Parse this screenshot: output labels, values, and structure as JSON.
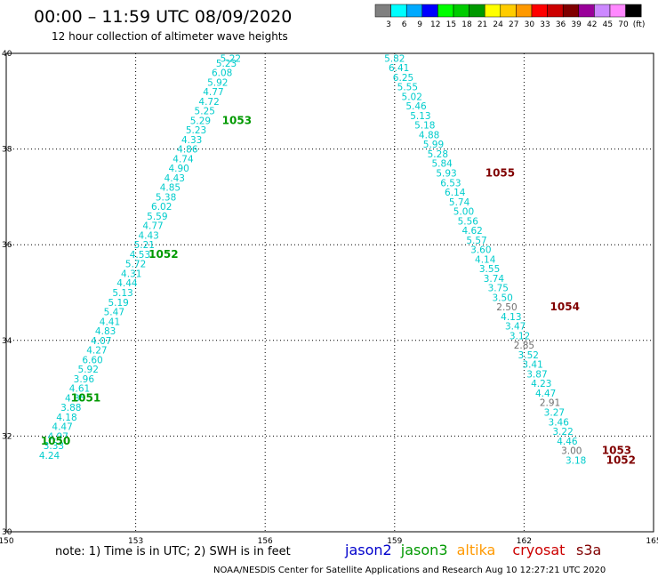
{
  "title": "00:00 – 11:59 UTC 08/09/2020",
  "subtitle": "12 hour collection of altimeter wave heights",
  "note": "note:  1) Time is in UTC;  2) SWH is in feet",
  "credit": "NOAA/NESDIS Center for Satellite Applications and Research      Aug 10 12:27:21 UTC 2020",
  "colorbar": {
    "colors": [
      "#808080",
      "#00ffff",
      "#00aaff",
      "#0000ff",
      "#00ff00",
      "#00cc00",
      "#009900",
      "#ffff00",
      "#ffcc00",
      "#ff9900",
      "#ff0000",
      "#cc0000",
      "#800000",
      "#990099",
      "#cc88ff",
      "#ff88ff",
      "#000000"
    ],
    "labels": [
      "3",
      "6",
      "9",
      "12",
      "15",
      "18",
      "21",
      "24",
      "27",
      "30",
      "33",
      "36",
      "39",
      "42",
      "45",
      "70",
      "(ft)"
    ]
  },
  "satellites": [
    {
      "name": "jason2",
      "color": "#0000cc"
    },
    {
      "name": "jason3",
      "color": "#009900"
    },
    {
      "name": "altika",
      "color": "#ff9900"
    },
    {
      "name": "cryosat",
      "color": "#cc0000"
    },
    {
      "name": "s3a",
      "color": "#800000"
    }
  ],
  "chart_data": {
    "type": "scatter",
    "xlim": [
      150,
      165
    ],
    "ylim": [
      30,
      40
    ],
    "x_ticks": [
      "150",
      "153",
      "156",
      "159",
      "162",
      "165"
    ],
    "y_ticks": [
      "30",
      "32",
      "34",
      "36",
      "38",
      "40"
    ],
    "grid": true,
    "series": [
      {
        "name": "jason3",
        "track_color": "#009900",
        "labels_color": "#00cccc",
        "points": [
          {
            "x": 155.2,
            "y": 39.9,
            "v": "5.22"
          },
          {
            "x": 155.1,
            "y": 39.8,
            "v": "5.23"
          },
          {
            "x": 155.0,
            "y": 39.6,
            "v": "6.08"
          },
          {
            "x": 154.9,
            "y": 39.4,
            "v": "5.92"
          },
          {
            "x": 154.8,
            "y": 39.2,
            "v": "4.77"
          },
          {
            "x": 154.7,
            "y": 39.0,
            "v": "4.72"
          },
          {
            "x": 154.6,
            "y": 38.8,
            "v": "5.25"
          },
          {
            "x": 154.5,
            "y": 38.6,
            "v": "5.29"
          },
          {
            "x": 154.4,
            "y": 38.4,
            "v": "5.23"
          },
          {
            "x": 154.3,
            "y": 38.2,
            "v": "4.33"
          },
          {
            "x": 154.2,
            "y": 38.0,
            "v": "4.86"
          },
          {
            "x": 154.1,
            "y": 37.8,
            "v": "4.74"
          },
          {
            "x": 154.0,
            "y": 37.6,
            "v": "4.90"
          },
          {
            "x": 153.9,
            "y": 37.4,
            "v": "4.43"
          },
          {
            "x": 153.8,
            "y": 37.2,
            "v": "4.85"
          },
          {
            "x": 153.7,
            "y": 37.0,
            "v": "5.38"
          },
          {
            "x": 153.6,
            "y": 36.8,
            "v": "6.02"
          },
          {
            "x": 153.5,
            "y": 36.6,
            "v": "5.59"
          },
          {
            "x": 153.4,
            "y": 36.4,
            "v": "4.77"
          },
          {
            "x": 153.3,
            "y": 36.2,
            "v": "4.43"
          },
          {
            "x": 153.2,
            "y": 36.0,
            "v": "5.21"
          },
          {
            "x": 153.1,
            "y": 35.8,
            "v": "4.53"
          },
          {
            "x": 153.0,
            "y": 35.6,
            "v": "5.72"
          },
          {
            "x": 152.9,
            "y": 35.4,
            "v": "4.31"
          },
          {
            "x": 152.8,
            "y": 35.2,
            "v": "4.44"
          },
          {
            "x": 152.7,
            "y": 35.0,
            "v": "5.13"
          },
          {
            "x": 152.6,
            "y": 34.8,
            "v": "5.19"
          },
          {
            "x": 152.5,
            "y": 34.6,
            "v": "5.47"
          },
          {
            "x": 152.4,
            "y": 34.4,
            "v": "4.41"
          },
          {
            "x": 152.3,
            "y": 34.2,
            "v": "4.83"
          },
          {
            "x": 152.2,
            "y": 34.0,
            "v": "4.07"
          },
          {
            "x": 152.1,
            "y": 33.8,
            "v": "4.27"
          },
          {
            "x": 152.0,
            "y": 33.6,
            "v": "6.60"
          },
          {
            "x": 151.9,
            "y": 33.4,
            "v": "5.92"
          },
          {
            "x": 151.8,
            "y": 33.2,
            "v": "3.96"
          },
          {
            "x": 151.7,
            "y": 33.0,
            "v": "4.61"
          },
          {
            "x": 151.6,
            "y": 32.8,
            "v": "4.35"
          },
          {
            "x": 151.5,
            "y": 32.6,
            "v": "3.88"
          },
          {
            "x": 151.4,
            "y": 32.4,
            "v": "4.18"
          },
          {
            "x": 151.3,
            "y": 32.2,
            "v": "4.47"
          },
          {
            "x": 151.2,
            "y": 32.0,
            "v": "4.97"
          },
          {
            "x": 151.1,
            "y": 31.8,
            "v": "3.33"
          },
          {
            "x": 151.0,
            "y": 31.6,
            "v": "4.24"
          }
        ],
        "tracks": [
          {
            "label": "1053",
            "x": 155.0,
            "y": 38.6
          },
          {
            "label": "1052",
            "x": 153.3,
            "y": 35.8
          },
          {
            "label": "1051",
            "x": 151.5,
            "y": 32.8
          },
          {
            "label": "1050",
            "x": 150.8,
            "y": 31.9
          }
        ]
      },
      {
        "name": "s3a",
        "track_color": "#800000",
        "labels_color": "#00cccc",
        "points": [
          {
            "x": 159.0,
            "y": 39.9,
            "v": "5.82"
          },
          {
            "x": 159.1,
            "y": 39.7,
            "v": "6.41"
          },
          {
            "x": 159.2,
            "y": 39.5,
            "v": "6.25"
          },
          {
            "x": 159.3,
            "y": 39.3,
            "v": "5.55"
          },
          {
            "x": 159.4,
            "y": 39.1,
            "v": "5.02"
          },
          {
            "x": 159.5,
            "y": 38.9,
            "v": "5.46"
          },
          {
            "x": 159.6,
            "y": 38.7,
            "v": "5.13"
          },
          {
            "x": 159.7,
            "y": 38.5,
            "v": "5.18"
          },
          {
            "x": 159.8,
            "y": 38.3,
            "v": "4.88"
          },
          {
            "x": 159.9,
            "y": 38.1,
            "v": "5.99"
          },
          {
            "x": 160.0,
            "y": 37.9,
            "v": "5.28"
          },
          {
            "x": 160.1,
            "y": 37.7,
            "v": "5.84"
          },
          {
            "x": 160.2,
            "y": 37.5,
            "v": "5.93"
          },
          {
            "x": 160.3,
            "y": 37.3,
            "v": "6.53"
          },
          {
            "x": 160.4,
            "y": 37.1,
            "v": "6.14"
          },
          {
            "x": 160.5,
            "y": 36.9,
            "v": "5.74"
          },
          {
            "x": 160.6,
            "y": 36.7,
            "v": "5.00"
          },
          {
            "x": 160.7,
            "y": 36.5,
            "v": "5.56"
          },
          {
            "x": 160.8,
            "y": 36.3,
            "v": "4.62"
          },
          {
            "x": 160.9,
            "y": 36.1,
            "v": "5.57"
          },
          {
            "x": 161.0,
            "y": 35.9,
            "v": "3.60"
          },
          {
            "x": 161.1,
            "y": 35.7,
            "v": "4.14"
          },
          {
            "x": 161.2,
            "y": 35.5,
            "v": "3.55"
          },
          {
            "x": 161.3,
            "y": 35.3,
            "v": "3.74"
          },
          {
            "x": 161.4,
            "y": 35.1,
            "v": "3.75"
          },
          {
            "x": 161.5,
            "y": 34.9,
            "v": "3.50"
          },
          {
            "x": 161.6,
            "y": 34.7,
            "v": "2.50",
            "gray": true
          },
          {
            "x": 161.7,
            "y": 34.5,
            "v": "4.13"
          },
          {
            "x": 161.8,
            "y": 34.3,
            "v": "3.47"
          },
          {
            "x": 161.9,
            "y": 34.1,
            "v": "3.12"
          },
          {
            "x": 162.0,
            "y": 33.9,
            "v": "2.85",
            "gray": true
          },
          {
            "x": 162.1,
            "y": 33.7,
            "v": "3.52"
          },
          {
            "x": 162.2,
            "y": 33.5,
            "v": "3.41"
          },
          {
            "x": 162.3,
            "y": 33.3,
            "v": "3.87"
          },
          {
            "x": 162.4,
            "y": 33.1,
            "v": "4.23"
          },
          {
            "x": 162.5,
            "y": 32.9,
            "v": "4.47"
          },
          {
            "x": 162.6,
            "y": 32.7,
            "v": "2.91",
            "gray": true
          },
          {
            "x": 162.7,
            "y": 32.5,
            "v": "3.27"
          },
          {
            "x": 162.8,
            "y": 32.3,
            "v": "3.46"
          },
          {
            "x": 162.9,
            "y": 32.1,
            "v": "3.22"
          },
          {
            "x": 163.0,
            "y": 31.9,
            "v": "4.46"
          },
          {
            "x": 163.1,
            "y": 31.7,
            "v": "3.00",
            "gray": true
          },
          {
            "x": 163.2,
            "y": 31.5,
            "v": "3.18"
          }
        ],
        "tracks": [
          {
            "label": "1055",
            "x": 161.1,
            "y": 37.5
          },
          {
            "label": "1054",
            "x": 162.6,
            "y": 34.7
          },
          {
            "label": "1053",
            "x": 163.8,
            "y": 31.7
          },
          {
            "label": "1052",
            "x": 163.9,
            "y": 31.5
          }
        ]
      }
    ]
  }
}
